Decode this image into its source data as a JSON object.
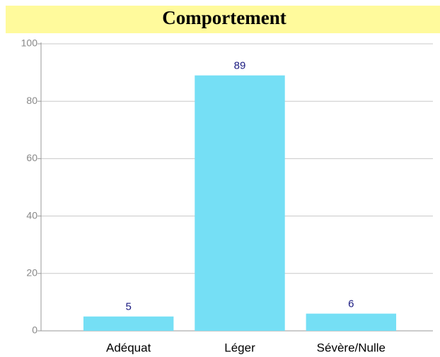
{
  "chart_data": {
    "type": "bar",
    "title": "Comportement",
    "categories": [
      "Adéquat",
      "Léger",
      "Sévère/Nulle"
    ],
    "values": [
      5,
      89,
      6
    ],
    "color": "#75dff5",
    "ylim": [
      0,
      100
    ],
    "yticks": [
      0,
      20,
      40,
      60,
      80,
      100
    ],
    "grid": true
  }
}
